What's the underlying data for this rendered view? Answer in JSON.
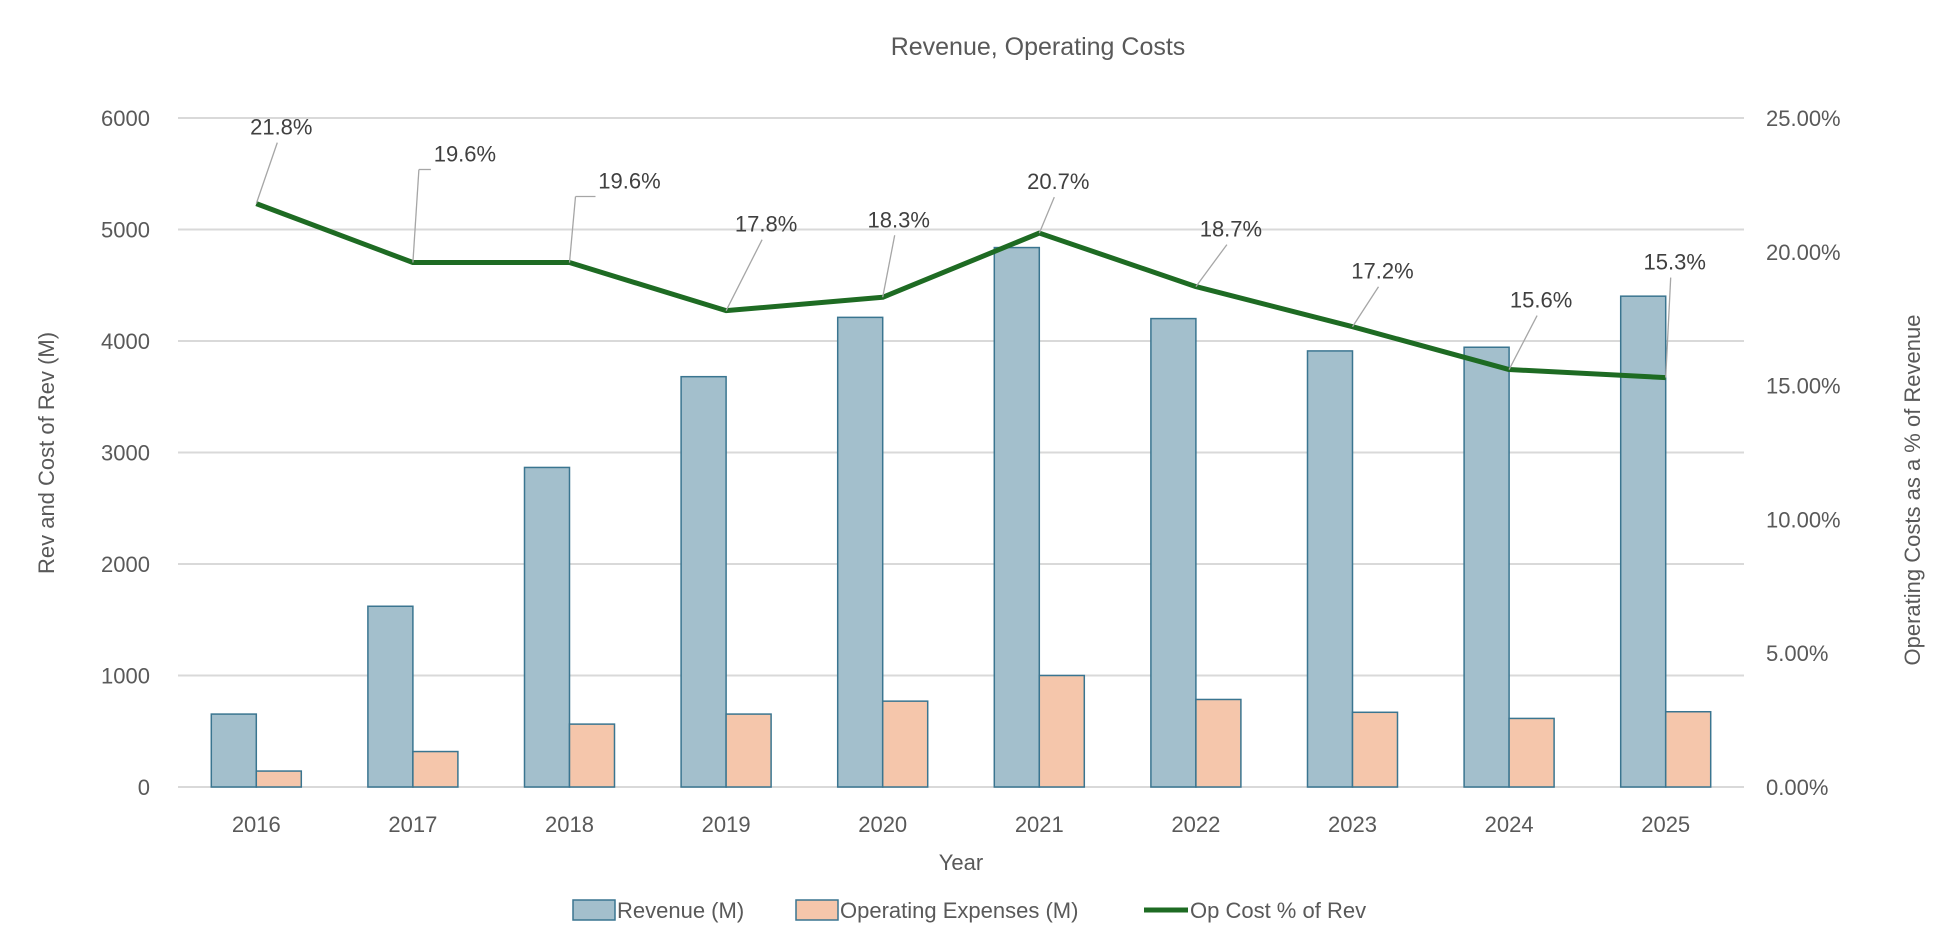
{
  "chart_data": {
    "type": "bar+line",
    "title": "Revenue, Operating Costs",
    "xlabel": "Year",
    "ylabel": "Rev and Cost of Rev (M)",
    "y2label": "Operating Costs as a % of Revenue",
    "categories": [
      "2016",
      "2017",
      "2018",
      "2019",
      "2020",
      "2021",
      "2022",
      "2023",
      "2024",
      "2025"
    ],
    "ylim": [
      0,
      6000
    ],
    "yticks": [
      "0",
      "1000",
      "2000",
      "3000",
      "4000",
      "5000",
      "6000"
    ],
    "y2lim": [
      0,
      25
    ],
    "y2ticks": [
      "0.00%",
      "5.00%",
      "10.00%",
      "15.00%",
      "20.00%",
      "25.00%"
    ],
    "grid": true,
    "legend_position": "bottom",
    "series": [
      {
        "name": "Revenue (M)",
        "type": "bar",
        "axis": "left",
        "color": "#a3bfcc",
        "edge": "#3a7590",
        "values": [
          654,
          1621,
          2866,
          3680,
          4212,
          4838,
          4201,
          3911,
          3944,
          4402
        ]
      },
      {
        "name": "Operating Expenses (M)",
        "type": "bar",
        "axis": "left",
        "color": "#f5c6ab",
        "edge": "#3a7590",
        "values": [
          143,
          318,
          564,
          654,
          770,
          1000,
          785,
          670,
          615,
          675
        ]
      },
      {
        "name": "Op Cost % of Rev",
        "type": "line",
        "axis": "right",
        "color": "#1e6b23",
        "values": [
          21.8,
          19.6,
          19.6,
          17.8,
          18.3,
          20.7,
          18.7,
          17.2,
          15.6,
          15.3
        ],
        "labels": [
          "21.8%",
          "19.6%",
          "19.6%",
          "17.8%",
          "18.3%",
          "20.7%",
          "18.7%",
          "17.2%",
          "15.6%",
          "15.3%"
        ]
      }
    ]
  }
}
